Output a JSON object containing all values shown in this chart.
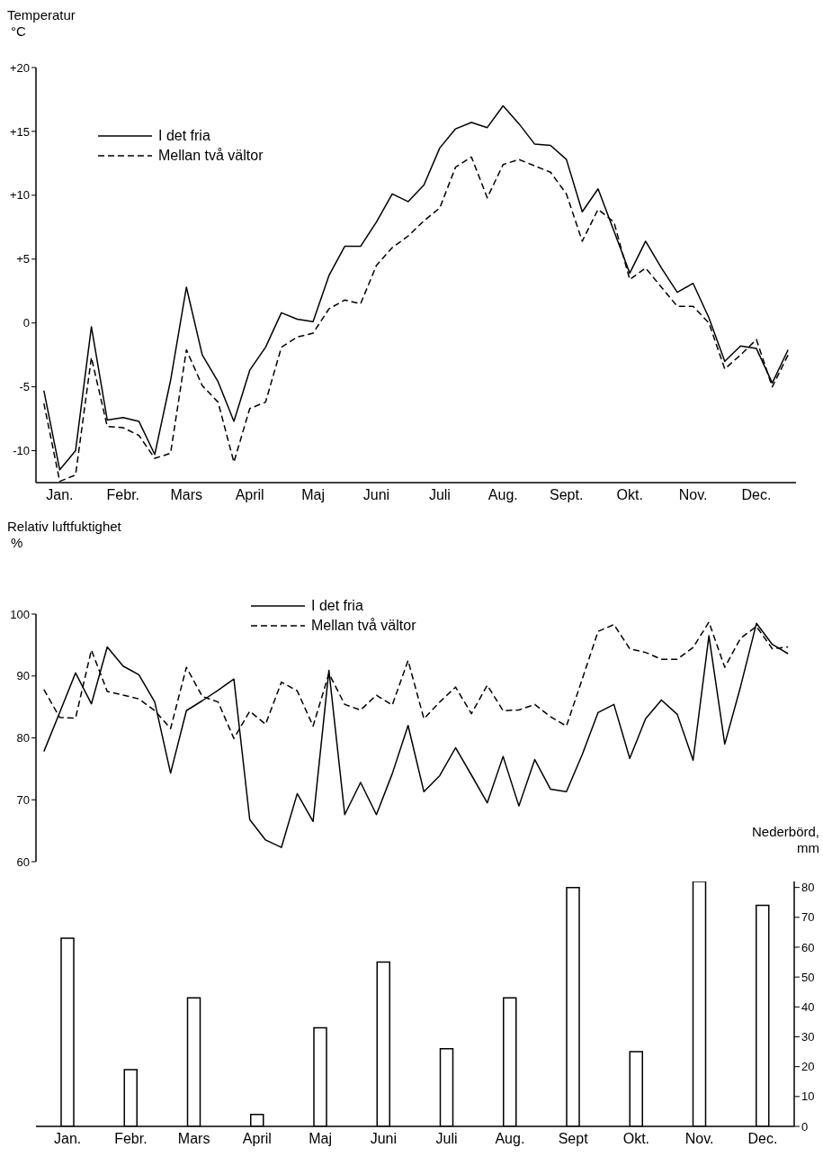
{
  "chart_data": [
    {
      "type": "line",
      "ylabel": "Temperatur °C",
      "legend": "top left",
      "marker": "none",
      "categories": [
        null,
        "Jan.",
        null,
        null,
        null,
        "Febr.",
        null,
        null,
        null,
        "Mars",
        null,
        null,
        null,
        "April",
        null,
        null,
        null,
        "Maj",
        null,
        null,
        null,
        "Juni",
        null,
        null,
        null,
        "Juli",
        null,
        null,
        null,
        "Aug.",
        null,
        null,
        null,
        "Sept.",
        null,
        null,
        null,
        "Okt.",
        null,
        null,
        null,
        "Nov.",
        null,
        null,
        null,
        "Dec.",
        null,
        null
      ],
      "ylim": [
        -12.5,
        20
      ],
      "yticks": [
        -10,
        -5,
        0,
        {
          "value": 5,
          "label": "+5"
        },
        {
          "value": 10,
          "label": "+10"
        },
        {
          "value": 15,
          "label": "+15"
        },
        {
          "value": 20,
          "label": "+20"
        }
      ],
      "series": [
        {
          "name": "I det fria",
          "color": "#000000",
          "line_style": "solid",
          "values": [
            -5.3,
            -11.5,
            -10.0,
            -0.3,
            -7.6,
            -7.4,
            -7.7,
            -10.3,
            -4.5,
            2.8,
            -2.5,
            -4.6,
            -7.7,
            -3.7,
            -1.9,
            0.8,
            0.3,
            0.1,
            3.7,
            6.0,
            6.0,
            7.9,
            10.1,
            9.5,
            10.8,
            13.7,
            15.2,
            15.7,
            15.3,
            17.0,
            15.6,
            14.0,
            13.9,
            12.8,
            8.7,
            10.5,
            7.2,
            3.9,
            6.4,
            4.3,
            2.4,
            3.1,
            0.4,
            -3.0,
            -1.8,
            -2.0,
            -4.7,
            -2.1
          ]
        },
        {
          "name": "Mellan två vältor",
          "color": "#000000",
          "line_style": "dashed",
          "values": [
            -6.3,
            -12.4,
            -11.9,
            -2.7,
            -8.1,
            -8.2,
            -8.8,
            -10.6,
            -10.2,
            -2.1,
            -4.9,
            -6.2,
            -10.9,
            -6.7,
            -6.2,
            -1.9,
            -1.1,
            -0.8,
            1.1,
            1.8,
            1.5,
            4.5,
            5.9,
            6.8,
            8.0,
            9.0,
            12.2,
            13.0,
            9.8,
            12.4,
            12.8,
            12.3,
            11.8,
            10.1,
            6.4,
            8.9,
            7.9,
            3.4,
            4.3,
            2.8,
            1.3,
            1.3,
            0.0,
            -3.6,
            -2.5,
            -1.3,
            -5.0,
            -2.5
          ]
        }
      ]
    },
    {
      "type": "line",
      "ylabel": "Relativ luftfuktighet %",
      "legend": "top",
      "marker": "none",
      "tick_labels": "y",
      "categories": [
        null,
        null,
        null,
        null,
        null,
        null,
        null,
        null,
        null,
        null,
        null,
        null,
        null,
        null,
        null,
        null,
        null,
        null,
        null,
        null,
        null,
        null,
        null,
        null,
        null,
        null,
        null,
        null,
        null,
        null,
        null,
        null,
        null,
        null,
        null,
        null,
        null,
        null,
        null,
        null,
        null,
        null,
        null,
        null,
        null,
        null,
        null,
        null
      ],
      "ylim": [
        60,
        100
      ],
      "yticks": [
        60,
        70,
        80,
        90,
        100
      ],
      "series": [
        {
          "name": "I det fria",
          "color": "#000000",
          "line_style": "solid",
          "values": [
            77.8,
            84.1,
            90.5,
            85.5,
            94.7,
            91.6,
            90.2,
            85.8,
            74.3,
            84.4,
            86.0,
            87.7,
            89.5,
            66.8,
            63.5,
            62.3,
            71.0,
            66.5,
            90.9,
            67.6,
            72.8,
            67.6,
            74.2,
            82.0,
            71.3,
            73.9,
            78.4,
            74.0,
            69.5,
            77.0,
            69.0,
            76.5,
            71.7,
            71.3,
            77.3,
            84.1,
            85.4,
            76.7,
            83.1,
            86.1,
            83.8,
            76.4,
            96.5,
            79.0,
            88.3,
            98.5,
            95.1,
            93.6
          ]
        },
        {
          "name": "Mellan två vältor",
          "color": "#000000",
          "line_style": "dashed",
          "values": [
            87.8,
            83.3,
            83.2,
            94.2,
            87.5,
            86.9,
            86.3,
            84.4,
            81.5,
            91.4,
            86.7,
            85.8,
            79.9,
            84.3,
            82.2,
            89.0,
            87.6,
            81.9,
            90.4,
            85.4,
            84.5,
            86.9,
            85.3,
            92.5,
            83.1,
            85.8,
            88.2,
            83.9,
            88.5,
            84.4,
            84.5,
            85.4,
            83.4,
            81.9,
            89.5,
            97.2,
            98.3,
            94.4,
            93.8,
            92.7,
            92.7,
            94.6,
            98.7,
            91.4,
            96.1,
            98.0,
            94.4,
            94.7
          ]
        }
      ]
    },
    {
      "type": "bar",
      "y2label": "Nederbörd, mm",
      "categories": [
        "Jan.",
        "Febr.",
        "Mars",
        "April",
        "Maj",
        "Juni",
        "Juli",
        "Aug.",
        "Sept",
        "Okt.",
        "Nov.",
        "Dec."
      ],
      "y2lim": [
        0,
        82
      ],
      "y2ticks": [
        0,
        10,
        20,
        30,
        40,
        50,
        60,
        70,
        80
      ],
      "series": [
        {
          "color": "#ffffff",
          "axis": "y2",
          "values": [
            63,
            19,
            43,
            4,
            33,
            55,
            26,
            43,
            80,
            25,
            82,
            74
          ]
        }
      ]
    }
  ]
}
